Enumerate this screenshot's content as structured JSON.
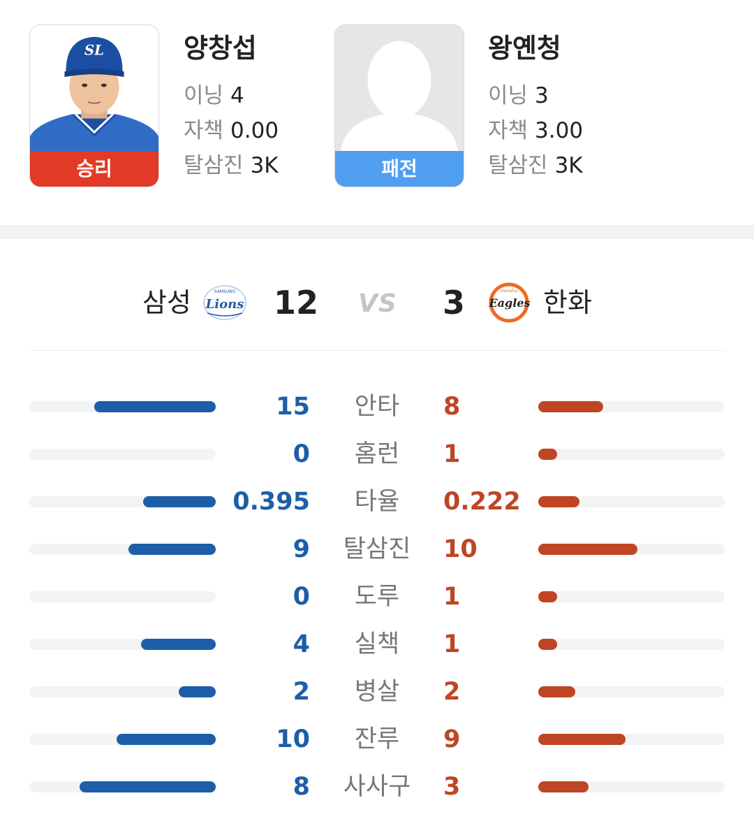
{
  "winning_pitcher": {
    "result": "승리",
    "name": "양창섭",
    "innings_label": "이닝",
    "innings": "4",
    "era_label": "자책",
    "era": "0.00",
    "k_label": "탈삼진",
    "k": "3K",
    "cap_logo_text": "SL"
  },
  "losing_pitcher": {
    "result": "패전",
    "name": "왕옌청",
    "innings_label": "이닝",
    "innings": "3",
    "era_label": "자책",
    "era": "3.00",
    "k_label": "탈삼진",
    "k": "3K"
  },
  "scoreboard": {
    "home": {
      "name": "삼성",
      "score": "12",
      "logo_text": "Lions",
      "logo_subtext": "SAMSUNG"
    },
    "vs": "VS",
    "away": {
      "name": "한화",
      "score": "3",
      "logo_text": "Eagles",
      "logo_subtext": "Hanwha"
    }
  },
  "colors": {
    "home": "#1d5ea8",
    "away": "#bf4524",
    "win": "#e23a26",
    "lose": "#4f9ef0"
  },
  "stats": [
    {
      "label": "안타",
      "home": "15",
      "away": "8",
      "home_share": 0.65,
      "away_share": 0.35
    },
    {
      "label": "홈런",
      "home": "0",
      "away": "1",
      "home_share": 0.0,
      "away_share": 0.1
    },
    {
      "label": "타율",
      "home": "0.395",
      "away": "0.222",
      "home_share": 0.39,
      "away_share": 0.22
    },
    {
      "label": "탈삼진",
      "home": "9",
      "away": "10",
      "home_share": 0.47,
      "away_share": 0.53
    },
    {
      "label": "도루",
      "home": "0",
      "away": "1",
      "home_share": 0.0,
      "away_share": 0.1
    },
    {
      "label": "실책",
      "home": "4",
      "away": "1",
      "home_share": 0.4,
      "away_share": 0.1
    },
    {
      "label": "병살",
      "home": "2",
      "away": "2",
      "home_share": 0.2,
      "away_share": 0.2
    },
    {
      "label": "잔루",
      "home": "10",
      "away": "9",
      "home_share": 0.53,
      "away_share": 0.47
    },
    {
      "label": "사사구",
      "home": "8",
      "away": "3",
      "home_share": 0.73,
      "away_share": 0.27
    }
  ]
}
